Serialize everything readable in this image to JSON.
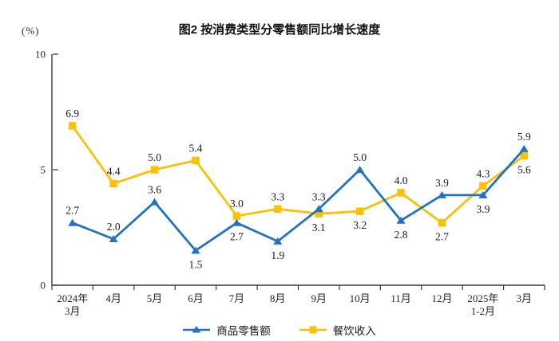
{
  "title": "图2 按消费类型分零售额同比增长速度",
  "y_axis_unit": "(%)",
  "colors": {
    "goods_blue": "#2272c3",
    "catering_gold": "#fdc008",
    "axis": "#3a3a3a"
  },
  "chart_data": {
    "type": "line",
    "title": "图2 按消费类型分零售额同比增长速度",
    "xlabel": "",
    "ylabel": "(%)",
    "ylim": [
      0,
      10
    ],
    "yticks": [
      0,
      5,
      10
    ],
    "grid": false,
    "legend_position": "bottom",
    "categories": [
      "2024年3月",
      "4月",
      "5月",
      "6月",
      "7月",
      "8月",
      "9月",
      "10月",
      "11月",
      "12月",
      "2025年1-2月",
      "3月"
    ],
    "category_tick_lines": [
      [
        "2024年",
        "3月"
      ],
      [
        "4月"
      ],
      [
        "5月"
      ],
      [
        "6月"
      ],
      [
        "7月"
      ],
      [
        "8月"
      ],
      [
        "9月"
      ],
      [
        "10月"
      ],
      [
        "11月"
      ],
      [
        "12月"
      ],
      [
        "2025年",
        "1-2月"
      ],
      [
        "3月"
      ]
    ],
    "series": [
      {
        "name": "商品零售额",
        "color": "#2272c3",
        "marker": "triangle",
        "values": [
          2.7,
          2.0,
          3.6,
          1.5,
          2.7,
          1.9,
          3.3,
          5.0,
          2.8,
          3.9,
          3.9,
          5.9
        ],
        "label_positions": [
          "above",
          "above",
          "above",
          "below",
          "below",
          "below",
          "above",
          "above",
          "below",
          "above",
          "below",
          "above"
        ]
      },
      {
        "name": "餐饮收入",
        "color": "#fdc008",
        "marker": "square",
        "values": [
          6.9,
          4.4,
          5.0,
          5.4,
          3.0,
          3.3,
          3.1,
          3.2,
          4.0,
          2.7,
          4.3,
          5.6
        ],
        "label_positions": [
          "above",
          "above",
          "above",
          "above",
          "above",
          "above",
          "below",
          "below",
          "above",
          "below",
          "above",
          "below"
        ]
      }
    ]
  }
}
